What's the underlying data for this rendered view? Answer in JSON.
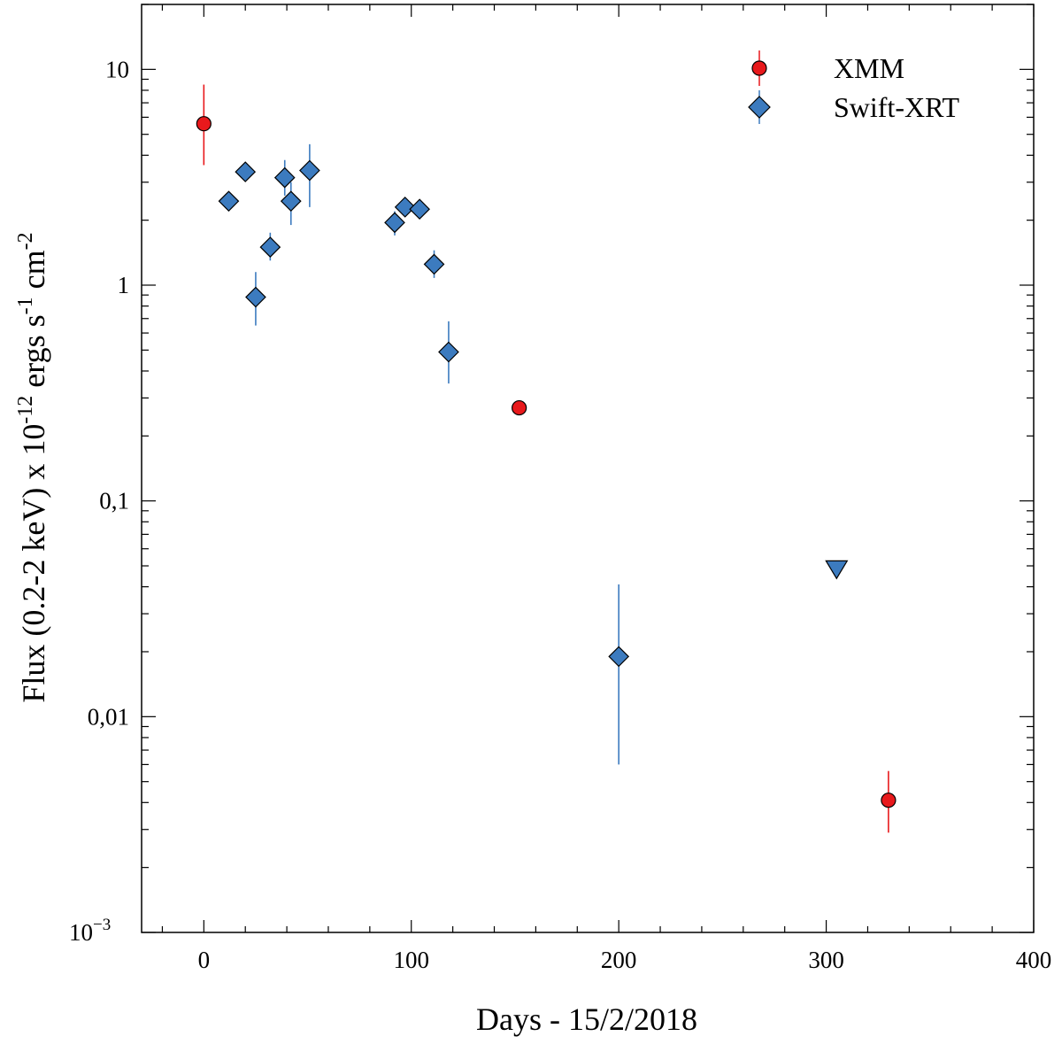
{
  "chart_data": {
    "type": "scatter",
    "title": "",
    "xlabel": "Days - 15/2/2018",
    "ylabel": {
      "main": "Flux (0.2-2 keV) x 10",
      "exp1": "-12",
      "mid": " ergs s",
      "exp2": "-1",
      "tail": " cm",
      "exp3": "-2"
    },
    "xlim": [
      -30,
      400
    ],
    "ylim": [
      0.001,
      20
    ],
    "yscale": "log",
    "x_ticks": [
      {
        "value": 0,
        "label": "0"
      },
      {
        "value": 100,
        "label": "100"
      },
      {
        "value": 200,
        "label": "200"
      },
      {
        "value": 300,
        "label": "300"
      },
      {
        "value": 400,
        "label": "400"
      }
    ],
    "y_ticks": [
      {
        "value": 10,
        "label": "10"
      },
      {
        "value": 1,
        "label": "1"
      },
      {
        "value": 0.1,
        "label": "0,1"
      },
      {
        "value": 0.01,
        "label": "0,01"
      },
      {
        "value": 0.001,
        "label": "10",
        "exp": "−3"
      }
    ],
    "legend_position": "top-right",
    "series": [
      {
        "name": "XMM",
        "marker": "circle",
        "color": "#e8191c",
        "err_color": "#e8191c",
        "points": [
          {
            "x": 0,
            "y": 5.6,
            "ylo": 3.6,
            "yhi": 8.5
          },
          {
            "x": 152,
            "y": 0.27,
            "ylo": 0.27,
            "yhi": 0.27
          },
          {
            "x": 330,
            "y": 0.0041,
            "ylo": 0.0029,
            "yhi": 0.0056
          }
        ]
      },
      {
        "name": "Swift-XRT",
        "marker": "diamond",
        "color": "#3c7bbf",
        "err_color": "#3c7bbf",
        "points": [
          {
            "x": 12,
            "y": 2.45,
            "ylo": 2.2,
            "yhi": 2.7
          },
          {
            "x": 20,
            "y": 3.35,
            "ylo": 3.1,
            "yhi": 3.6
          },
          {
            "x": 25,
            "y": 0.88,
            "ylo": 0.65,
            "yhi": 1.15
          },
          {
            "x": 32,
            "y": 1.5,
            "ylo": 1.3,
            "yhi": 1.75
          },
          {
            "x": 39,
            "y": 3.15,
            "ylo": 2.6,
            "yhi": 3.8
          },
          {
            "x": 42,
            "y": 2.45,
            "ylo": 1.9,
            "yhi": 3.0
          },
          {
            "x": 51,
            "y": 3.4,
            "ylo": 2.3,
            "yhi": 4.5
          },
          {
            "x": 92,
            "y": 1.95,
            "ylo": 1.7,
            "yhi": 2.2
          },
          {
            "x": 97,
            "y": 2.3,
            "ylo": 2.1,
            "yhi": 2.5
          },
          {
            "x": 104,
            "y": 2.25,
            "ylo": 2.05,
            "yhi": 2.45
          },
          {
            "x": 111,
            "y": 1.25,
            "ylo": 1.08,
            "yhi": 1.45
          },
          {
            "x": 118,
            "y": 0.49,
            "ylo": 0.35,
            "yhi": 0.68
          },
          {
            "x": 200,
            "y": 0.019,
            "ylo": 0.006,
            "yhi": 0.041
          }
        ]
      },
      {
        "name": "Swift-XRT upper limit",
        "marker": "triangle-down",
        "color": "#3c7bbf",
        "in_legend": false,
        "points": [
          {
            "x": 305,
            "y": 0.048
          }
        ]
      }
    ]
  }
}
